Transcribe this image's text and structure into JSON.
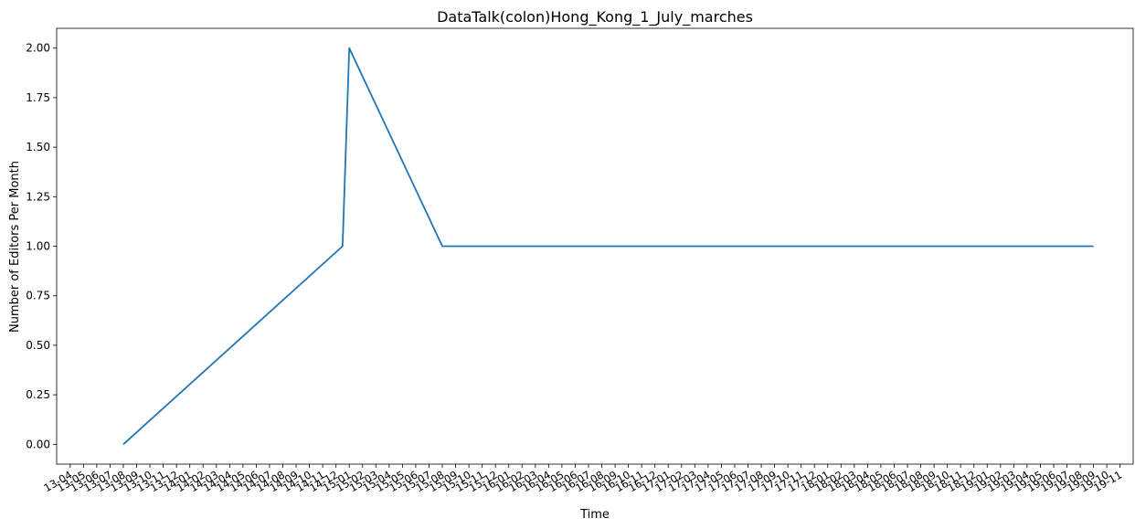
{
  "chart_data": {
    "type": "line",
    "title": "DataTalk(colon)Hong_Kong_1_July_marches",
    "xlabel": "Time",
    "ylabel": "Number of Editors Per Month",
    "ylim": [
      -0.1,
      2.1
    ],
    "yticks": [
      "0.00",
      "0.25",
      "0.50",
      "0.75",
      "1.00",
      "1.25",
      "1.50",
      "1.75",
      "2.00"
    ],
    "xticks": [
      "13-04",
      "13-05",
      "13-06",
      "13-07",
      "13-08",
      "13-09",
      "13-10",
      "13-11",
      "13-12",
      "14-01",
      "14-02",
      "14-03",
      "14-04",
      "14-05",
      "14-06",
      "14-07",
      "14-08",
      "14-09",
      "14-10",
      "14-11",
      "14-12",
      "15-01",
      "15-02",
      "15-03",
      "15-04",
      "15-05",
      "15-06",
      "15-07",
      "15-08",
      "15-09",
      "15-10",
      "15-11",
      "15-12",
      "16-01",
      "16-02",
      "16-03",
      "16-04",
      "16-05",
      "16-06",
      "16-07",
      "16-08",
      "16-09",
      "16-10",
      "16-11",
      "16-12",
      "17-01",
      "17-02",
      "17-03",
      "17-04",
      "17-05",
      "17-06",
      "17-07",
      "17-08",
      "17-09",
      "17-10",
      "17-11",
      "17-12",
      "18-01",
      "18-02",
      "18-03",
      "18-04",
      "18-05",
      "18-06",
      "18-07",
      "18-08",
      "18-09",
      "18-10",
      "18-11",
      "18-12",
      "19-01",
      "19-02",
      "19-03",
      "19-04",
      "19-05",
      "19-06",
      "19-07",
      "19-08",
      "19-09",
      "19-10",
      "19-11"
    ],
    "series": [
      {
        "color": "#1f77b4",
        "points": [
          {
            "x": "2013-08-01",
            "y": 0
          },
          {
            "x": "2014-12-16",
            "y": 1
          },
          {
            "x": "2015-01-01",
            "y": 2
          },
          {
            "x": "2015-08-01",
            "y": 1
          },
          {
            "x": "2019-09-01",
            "y": 1
          }
        ]
      }
    ],
    "grid": false,
    "legend": "none"
  }
}
